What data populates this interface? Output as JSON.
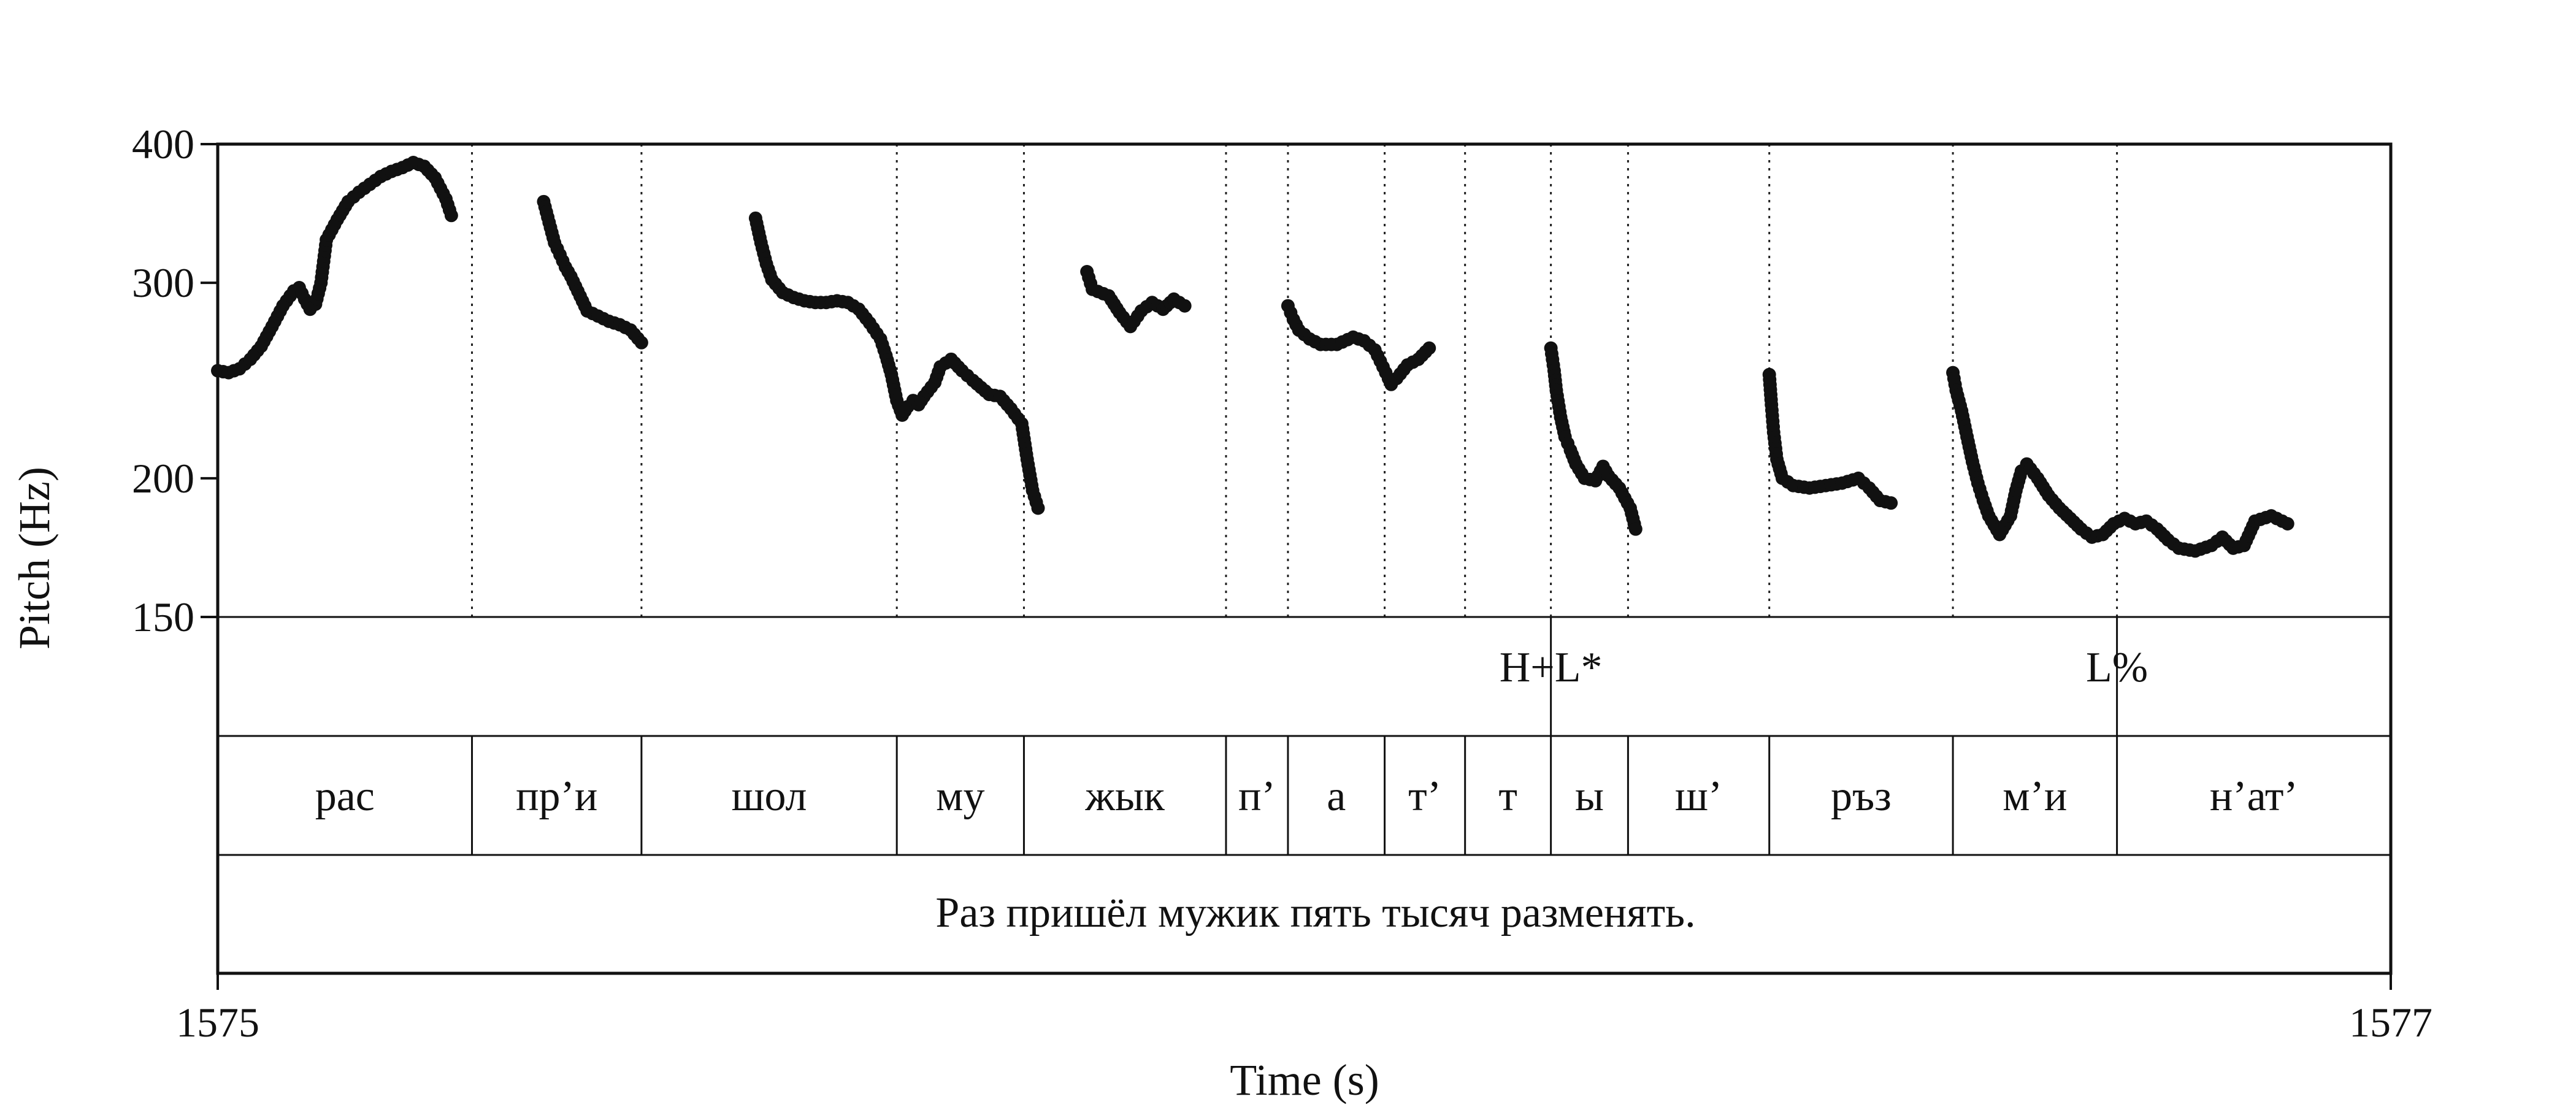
{
  "chart_data": {
    "type": "scatter",
    "title": "",
    "xlabel": "Time (s)",
    "ylabel": "Pitch (Hz)",
    "xlim": [
      1575,
      1577
    ],
    "ylim": [
      150,
      400
    ],
    "y_scale": "log",
    "x_ticks": [
      "1575",
      "1577"
    ],
    "y_ticks": [
      {
        "value": 150,
        "label": "150"
      },
      {
        "value": 200,
        "label": "200"
      },
      {
        "value": 300,
        "label": "300"
      },
      {
        "value": 400,
        "label": "400"
      }
    ],
    "grid": "dotted vertical lines at syllable boundaries",
    "marker_color": "#111111",
    "tone_tier": [
      {
        "label": "H+L*",
        "time": 1576.227
      },
      {
        "label": "L%",
        "time": 1576.748
      }
    ],
    "syllable_tier": [
      {
        "label": "рас",
        "start": 1575.0,
        "end": 1575.234
      },
      {
        "label": "пр’и",
        "start": 1575.234,
        "end": 1575.39
      },
      {
        "label": "шол",
        "start": 1575.39,
        "end": 1575.625
      },
      {
        "label": "му",
        "start": 1575.625,
        "end": 1575.742
      },
      {
        "label": "жык",
        "start": 1575.742,
        "end": 1575.928
      },
      {
        "label": "п’",
        "start": 1575.928,
        "end": 1575.985
      },
      {
        "label": "а",
        "start": 1575.985,
        "end": 1576.074
      },
      {
        "label": "т’",
        "start": 1576.074,
        "end": 1576.148
      },
      {
        "label": "т",
        "start": 1576.148,
        "end": 1576.227
      },
      {
        "label": "ы",
        "start": 1576.227,
        "end": 1576.298
      },
      {
        "label": "ш’",
        "start": 1576.298,
        "end": 1576.428
      },
      {
        "label": "ръз",
        "start": 1576.428,
        "end": 1576.597
      },
      {
        "label": "м’и",
        "start": 1576.597,
        "end": 1576.748
      },
      {
        "label": "н’ат’",
        "start": 1576.748,
        "end": 1577.0
      }
    ],
    "sentence_tier": "Раз пришёл мужик пять тысяч разменять.",
    "pitch_segments": [
      {
        "points": [
          [
            1575.0,
            250
          ],
          [
            1575.01,
            249
          ],
          [
            1575.02,
            251
          ],
          [
            1575.03,
            256
          ],
          [
            1575.04,
            263
          ],
          [
            1575.05,
            274
          ],
          [
            1575.06,
            286
          ],
          [
            1575.07,
            295
          ],
          [
            1575.075,
            297
          ],
          [
            1575.08,
            290
          ],
          [
            1575.085,
            284
          ],
          [
            1575.09,
            287
          ],
          [
            1575.095,
            300
          ],
          [
            1575.1,
            328
          ],
          [
            1575.11,
            342
          ],
          [
            1575.12,
            355
          ],
          [
            1575.13,
            362
          ],
          [
            1575.14,
            368
          ],
          [
            1575.15,
            374
          ],
          [
            1575.16,
            378
          ],
          [
            1575.17,
            381
          ],
          [
            1575.175,
            383
          ],
          [
            1575.18,
            385
          ],
          [
            1575.19,
            382
          ],
          [
            1575.2,
            373
          ],
          [
            1575.21,
            357
          ],
          [
            1575.215,
            345
          ]
        ]
      },
      {
        "points": [
          [
            1575.3,
            355
          ],
          [
            1575.305,
            340
          ],
          [
            1575.31,
            326
          ],
          [
            1575.315,
            318
          ],
          [
            1575.32,
            310
          ],
          [
            1575.325,
            304
          ],
          [
            1575.34,
            283
          ],
          [
            1575.35,
            280
          ],
          [
            1575.36,
            277
          ],
          [
            1575.37,
            275
          ],
          [
            1575.38,
            272
          ],
          [
            1575.39,
            265
          ]
        ]
      },
      {
        "points": [
          [
            1575.495,
            343
          ],
          [
            1575.5,
            326
          ],
          [
            1575.505,
            312
          ],
          [
            1575.51,
            302
          ],
          [
            1575.52,
            294
          ],
          [
            1575.53,
            291
          ],
          [
            1575.54,
            289
          ],
          [
            1575.55,
            288
          ],
          [
            1575.56,
            288
          ],
          [
            1575.57,
            289
          ],
          [
            1575.58,
            288
          ],
          [
            1575.59,
            284
          ],
          [
            1575.6,
            276
          ],
          [
            1575.61,
            267
          ],
          [
            1575.615,
            258
          ],
          [
            1575.62,
            248
          ],
          [
            1575.625,
            235
          ],
          [
            1575.63,
            228
          ],
          [
            1575.635,
            232
          ],
          [
            1575.64,
            235
          ],
          [
            1575.645,
            233
          ],
          [
            1575.65,
            237
          ],
          [
            1575.66,
            244
          ],
          [
            1575.665,
            252
          ],
          [
            1575.675,
            256
          ],
          [
            1575.685,
            250
          ],
          [
            1575.695,
            245
          ],
          [
            1575.71,
            238
          ],
          [
            1575.72,
            237
          ],
          [
            1575.73,
            231
          ],
          [
            1575.74,
            224
          ],
          [
            1575.745,
            208
          ],
          [
            1575.75,
            195
          ],
          [
            1575.755,
            188
          ]
        ]
      },
      {
        "points": [
          [
            1575.8,
            307
          ],
          [
            1575.805,
            296
          ],
          [
            1575.82,
            292
          ],
          [
            1575.83,
            282
          ],
          [
            1575.84,
            274
          ],
          [
            1575.85,
            283
          ],
          [
            1575.86,
            288
          ],
          [
            1575.87,
            284
          ],
          [
            1575.88,
            290
          ],
          [
            1575.89,
            286
          ]
        ]
      },
      {
        "points": [
          [
            1575.985,
            286
          ],
          [
            1575.99,
            278
          ],
          [
            1575.995,
            272
          ],
          [
            1576.005,
            267
          ],
          [
            1576.015,
            264
          ],
          [
            1576.03,
            264
          ],
          [
            1576.045,
            268
          ],
          [
            1576.055,
            266
          ],
          [
            1576.065,
            261
          ],
          [
            1576.07,
            255
          ],
          [
            1576.075,
            249
          ],
          [
            1576.08,
            243
          ],
          [
            1576.085,
            246
          ],
          [
            1576.095,
            253
          ],
          [
            1576.105,
            256
          ],
          [
            1576.115,
            262
          ]
        ]
      },
      {
        "points": [
          [
            1576.227,
            262
          ],
          [
            1576.23,
            250
          ],
          [
            1576.232,
            240
          ],
          [
            1576.236,
            227
          ],
          [
            1576.24,
            218
          ],
          [
            1576.245,
            212
          ],
          [
            1576.25,
            206
          ],
          [
            1576.258,
            200
          ],
          [
            1576.268,
            199
          ],
          [
            1576.275,
            205
          ],
          [
            1576.28,
            201
          ],
          [
            1576.29,
            196
          ],
          [
            1576.3,
            188
          ],
          [
            1576.305,
            180
          ]
        ]
      },
      {
        "points": [
          [
            1576.428,
            248
          ],
          [
            1576.43,
            233
          ],
          [
            1576.432,
            220
          ],
          [
            1576.435,
            208
          ],
          [
            1576.44,
            200
          ],
          [
            1576.45,
            197
          ],
          [
            1576.465,
            196
          ],
          [
            1576.48,
            197
          ],
          [
            1576.495,
            198
          ],
          [
            1576.51,
            200
          ],
          [
            1576.52,
            196
          ],
          [
            1576.53,
            191
          ],
          [
            1576.54,
            190
          ]
        ]
      },
      {
        "points": [
          [
            1576.597,
            249
          ],
          [
            1576.6,
            240
          ],
          [
            1576.605,
            230
          ],
          [
            1576.61,
            218
          ],
          [
            1576.615,
            207
          ],
          [
            1576.62,
            198
          ],
          [
            1576.625,
            191
          ],
          [
            1576.63,
            185
          ],
          [
            1576.64,
            178
          ],
          [
            1576.65,
            185
          ],
          [
            1576.655,
            195
          ],
          [
            1576.66,
            203
          ],
          [
            1576.665,
            206
          ],
          [
            1576.675,
            200
          ],
          [
            1576.685,
            193
          ],
          [
            1576.695,
            188
          ],
          [
            1576.705,
            184
          ],
          [
            1576.715,
            180
          ],
          [
            1576.725,
            177
          ],
          [
            1576.735,
            178
          ],
          [
            1576.745,
            182
          ],
          [
            1576.755,
            184
          ],
          [
            1576.765,
            182
          ],
          [
            1576.775,
            183
          ],
          [
            1576.785,
            180
          ],
          [
            1576.795,
            176
          ],
          [
            1576.805,
            173
          ],
          [
            1576.82,
            172
          ],
          [
            1576.835,
            174
          ],
          [
            1576.845,
            177
          ],
          [
            1576.855,
            173
          ],
          [
            1576.865,
            174
          ],
          [
            1576.875,
            183
          ],
          [
            1576.89,
            185
          ],
          [
            1576.905,
            182
          ]
        ]
      }
    ]
  }
}
